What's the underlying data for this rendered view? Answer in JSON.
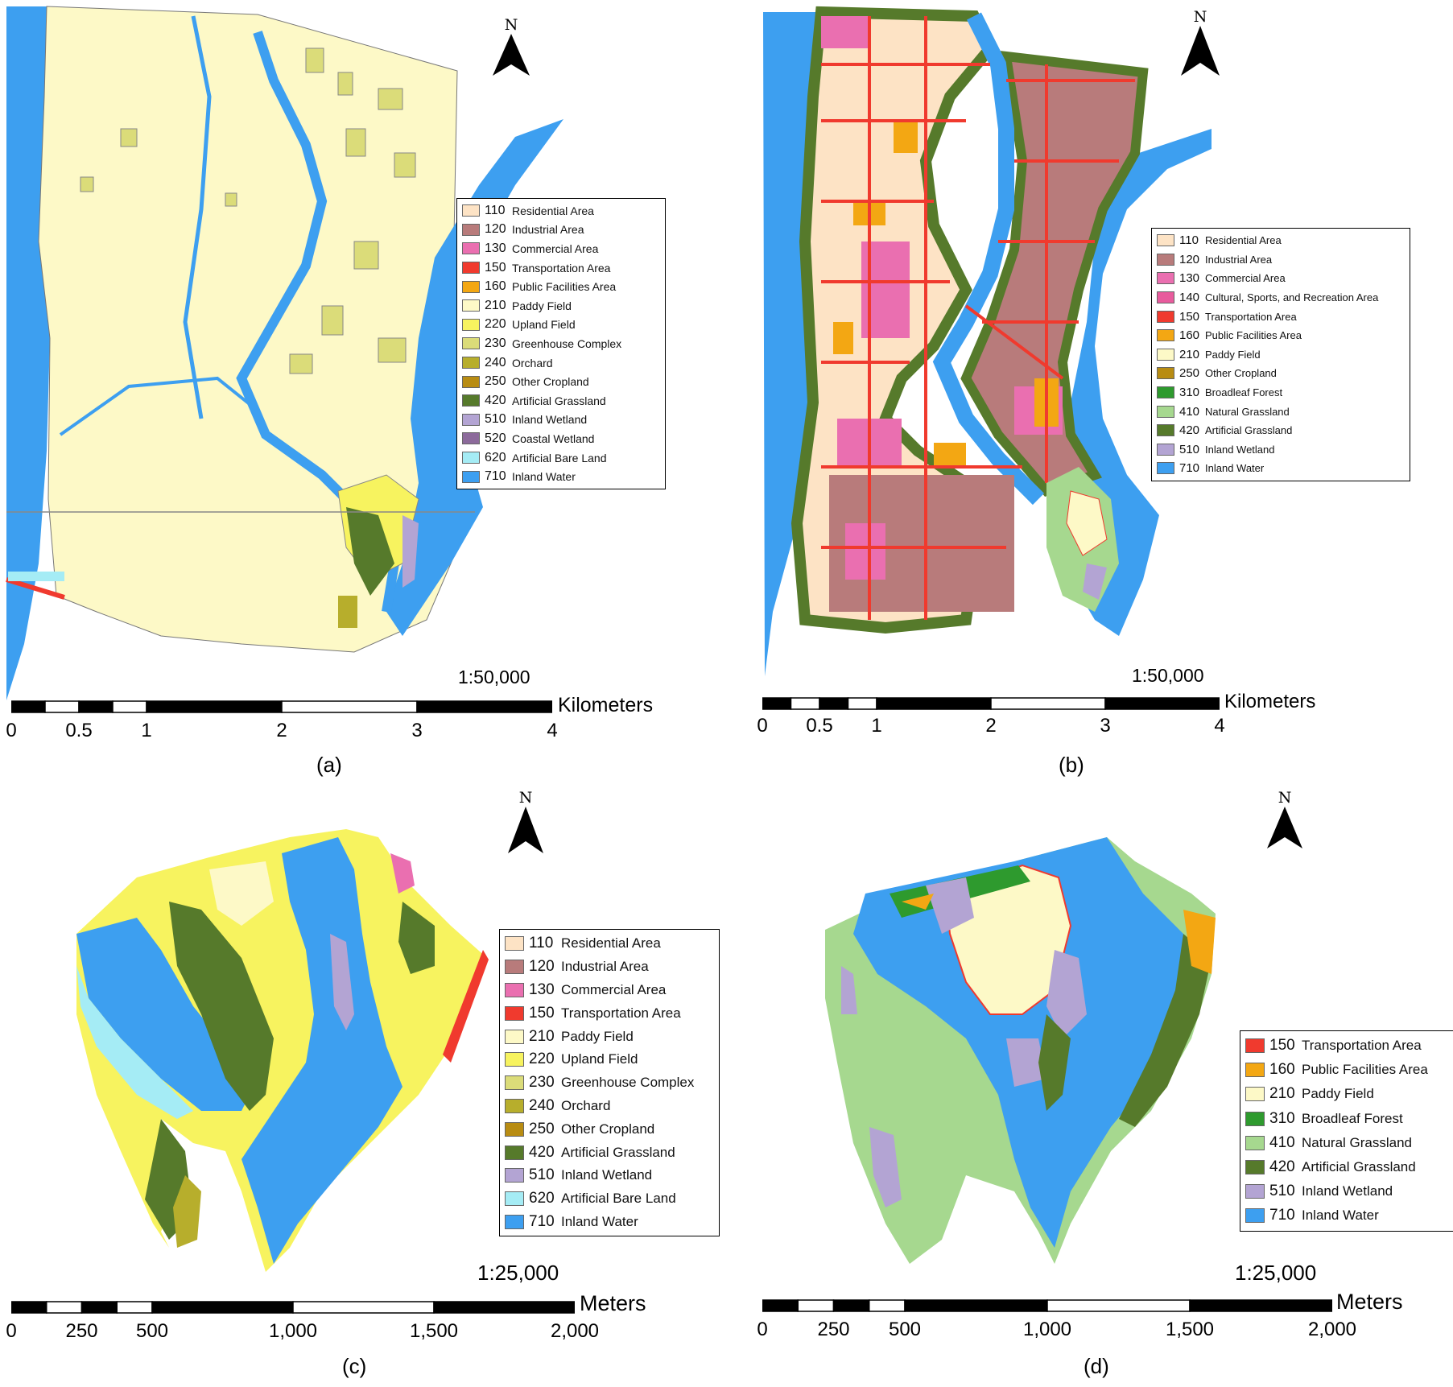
{
  "colors": {
    "c110": "#fde3c5",
    "c120": "#b87b7b",
    "c130": "#ea6fb0",
    "c140": "#e85b9d",
    "c150": "#f03a2e",
    "c160": "#f3a713",
    "c210": "#fdf9c7",
    "c220": "#f7f35f",
    "c230": "#dbdc79",
    "c240": "#b7ae2c",
    "c250": "#b88c12",
    "c310": "#2e9a2e",
    "c410": "#a6d88f",
    "c420": "#567a2b",
    "c510": "#b3a4d3",
    "c520": "#8c6a9b",
    "c620": "#a5ecf5",
    "c710": "#3d9ff0"
  },
  "panels": [
    {
      "caption": "(a)",
      "north": "N",
      "scale_ratio": "1:50,000",
      "unit": "Kilometers",
      "ticks": [
        "0",
        "0.5",
        "1",
        "2",
        "3",
        "4"
      ],
      "legend": [
        {
          "code": "110",
          "label": "Residential Area",
          "color": "#fde3c5"
        },
        {
          "code": "120",
          "label": "Industrial Area",
          "color": "#b87b7b"
        },
        {
          "code": "130",
          "label": "Commercial Area",
          "color": "#ea6fb0"
        },
        {
          "code": "150",
          "label": "Transportation Area",
          "color": "#f03a2e"
        },
        {
          "code": "160",
          "label": "Public Facilities Area",
          "color": "#f3a713"
        },
        {
          "code": "210",
          "label": "Paddy Field",
          "color": "#fdf9c7"
        },
        {
          "code": "220",
          "label": "Upland Field",
          "color": "#f7f35f"
        },
        {
          "code": "230",
          "label": "Greenhouse Complex",
          "color": "#dbdc79"
        },
        {
          "code": "240",
          "label": "Orchard",
          "color": "#b7ae2c"
        },
        {
          "code": "250",
          "label": "Other Cropland",
          "color": "#b88c12"
        },
        {
          "code": "420",
          "label": "Artificial Grassland",
          "color": "#567a2b"
        },
        {
          "code": "510",
          "label": "Inland Wetland",
          "color": "#b3a4d3"
        },
        {
          "code": "520",
          "label": "Coastal Wetland",
          "color": "#8c6a9b"
        },
        {
          "code": "620",
          "label": "Artificial Bare Land",
          "color": "#a5ecf5"
        },
        {
          "code": "710",
          "label": "Inland Water",
          "color": "#3d9ff0"
        }
      ]
    },
    {
      "caption": "(b)",
      "north": "N",
      "scale_ratio": "1:50,000",
      "unit": "Kilometers",
      "ticks": [
        "0",
        "0.5",
        "1",
        "2",
        "3",
        "4"
      ],
      "legend": [
        {
          "code": "110",
          "label": "Residential Area",
          "color": "#fde3c5"
        },
        {
          "code": "120",
          "label": "Industrial Area",
          "color": "#b87b7b"
        },
        {
          "code": "130",
          "label": "Commercial Area",
          "color": "#ea6fb0"
        },
        {
          "code": "140",
          "label": "Cultural, Sports, and Recreation Area",
          "color": "#e85b9d"
        },
        {
          "code": "150",
          "label": "Transportation Area",
          "color": "#f03a2e"
        },
        {
          "code": "160",
          "label": "Public Facilities Area",
          "color": "#f3a713"
        },
        {
          "code": "210",
          "label": "Paddy Field",
          "color": "#fdf9c7"
        },
        {
          "code": "250",
          "label": "Other Cropland",
          "color": "#b88c12"
        },
        {
          "code": "310",
          "label": "Broadleaf Forest",
          "color": "#2e9a2e"
        },
        {
          "code": "410",
          "label": "Natural Grassland",
          "color": "#a6d88f"
        },
        {
          "code": "420",
          "label": "Artificial Grassland",
          "color": "#567a2b"
        },
        {
          "code": "510",
          "label": "Inland Wetland",
          "color": "#b3a4d3"
        },
        {
          "code": "710",
          "label": "Inland Water",
          "color": "#3d9ff0"
        }
      ]
    },
    {
      "caption": "(c)",
      "north": "N",
      "scale_ratio": "1:25,000",
      "unit": "Meters",
      "ticks": [
        "0",
        "250",
        "500",
        "1,000",
        "1,500",
        "2,000"
      ],
      "legend": [
        {
          "code": "110",
          "label": "Residential Area",
          "color": "#fde3c5"
        },
        {
          "code": "120",
          "label": "Industrial Area",
          "color": "#b87b7b"
        },
        {
          "code": "130",
          "label": "Commercial Area",
          "color": "#ea6fb0"
        },
        {
          "code": "150",
          "label": "Transportation Area",
          "color": "#f03a2e"
        },
        {
          "code": "210",
          "label": "Paddy Field",
          "color": "#fdf9c7"
        },
        {
          "code": "220",
          "label": "Upland Field",
          "color": "#f7f35f"
        },
        {
          "code": "230",
          "label": "Greenhouse Complex",
          "color": "#dbdc79"
        },
        {
          "code": "240",
          "label": "Orchard",
          "color": "#b7ae2c"
        },
        {
          "code": "250",
          "label": "Other Cropland",
          "color": "#b88c12"
        },
        {
          "code": "420",
          "label": "Artificial Grassland",
          "color": "#567a2b"
        },
        {
          "code": "510",
          "label": "Inland Wetland",
          "color": "#b3a4d3"
        },
        {
          "code": "620",
          "label": "Artificial Bare Land",
          "color": "#a5ecf5"
        },
        {
          "code": "710",
          "label": "Inland Water",
          "color": "#3d9ff0"
        }
      ]
    },
    {
      "caption": "(d)",
      "north": "N",
      "scale_ratio": "1:25,000",
      "unit": "Meters",
      "ticks": [
        "0",
        "250",
        "500",
        "1,000",
        "1,500",
        "2,000"
      ],
      "legend": [
        {
          "code": "150",
          "label": "Transportation Area",
          "color": "#f03a2e"
        },
        {
          "code": "160",
          "label": "Public Facilities Area",
          "color": "#f3a713"
        },
        {
          "code": "210",
          "label": "Paddy Field",
          "color": "#fdf9c7"
        },
        {
          "code": "310",
          "label": "Broadleaf Forest",
          "color": "#2e9a2e"
        },
        {
          "code": "410",
          "label": "Natural Grassland",
          "color": "#a6d88f"
        },
        {
          "code": "420",
          "label": "Artificial Grassland",
          "color": "#567a2b"
        },
        {
          "code": "510",
          "label": "Inland Wetland",
          "color": "#b3a4d3"
        },
        {
          "code": "710",
          "label": "Inland Water",
          "color": "#3d9ff0"
        }
      ]
    }
  ]
}
